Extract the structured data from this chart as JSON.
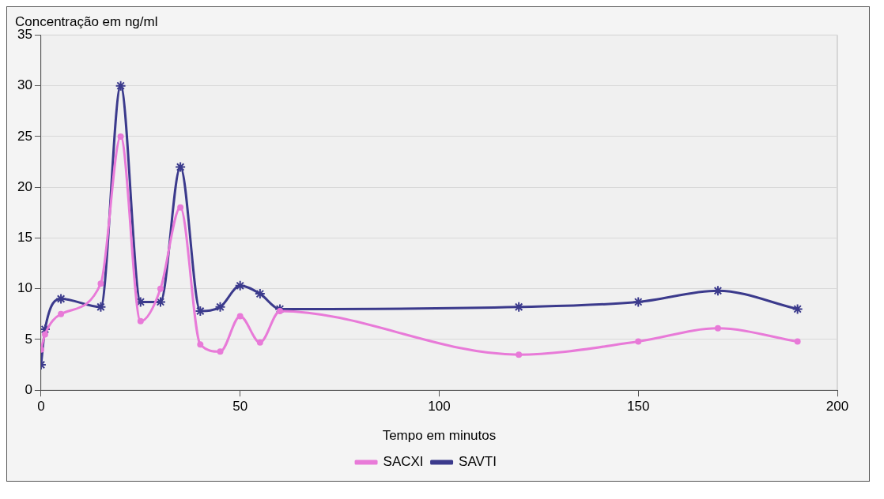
{
  "chart_data": {
    "type": "line",
    "title": "Concentração em ng/ml",
    "xlabel": "Tempo em minutos",
    "xlim": [
      0,
      200
    ],
    "xticks": [
      0,
      50,
      100,
      150,
      200
    ],
    "ylim": [
      0,
      35
    ],
    "yticks": [
      0,
      5,
      10,
      15,
      20,
      25,
      30,
      35
    ],
    "grid": "y",
    "legend": "bottom",
    "series": [
      {
        "name": "SAVTI",
        "color": "#3b3a8c",
        "marker": "cross",
        "x": [
          0,
          1,
          5,
          15,
          20,
          25,
          30,
          35,
          40,
          45,
          50,
          55,
          60,
          120,
          150,
          170,
          190
        ],
        "values": [
          2.5,
          6,
          9,
          8.2,
          30,
          8.7,
          8.7,
          22,
          7.8,
          8.2,
          10.3,
          9.5,
          8,
          8.2,
          8.7,
          9.8,
          8
        ]
      },
      {
        "name": "SACXI",
        "color": "#e87ad8",
        "marker": "circle",
        "x": [
          0,
          1,
          5,
          15,
          20,
          25,
          30,
          35,
          40,
          45,
          50,
          55,
          60,
          120,
          150,
          170,
          190
        ],
        "values": [
          4,
          5.5,
          7.5,
          10.5,
          25,
          6.8,
          10,
          18,
          4.5,
          3.8,
          7.3,
          4.7,
          7.8,
          3.5,
          4.8,
          6.1,
          4.8
        ]
      }
    ]
  }
}
